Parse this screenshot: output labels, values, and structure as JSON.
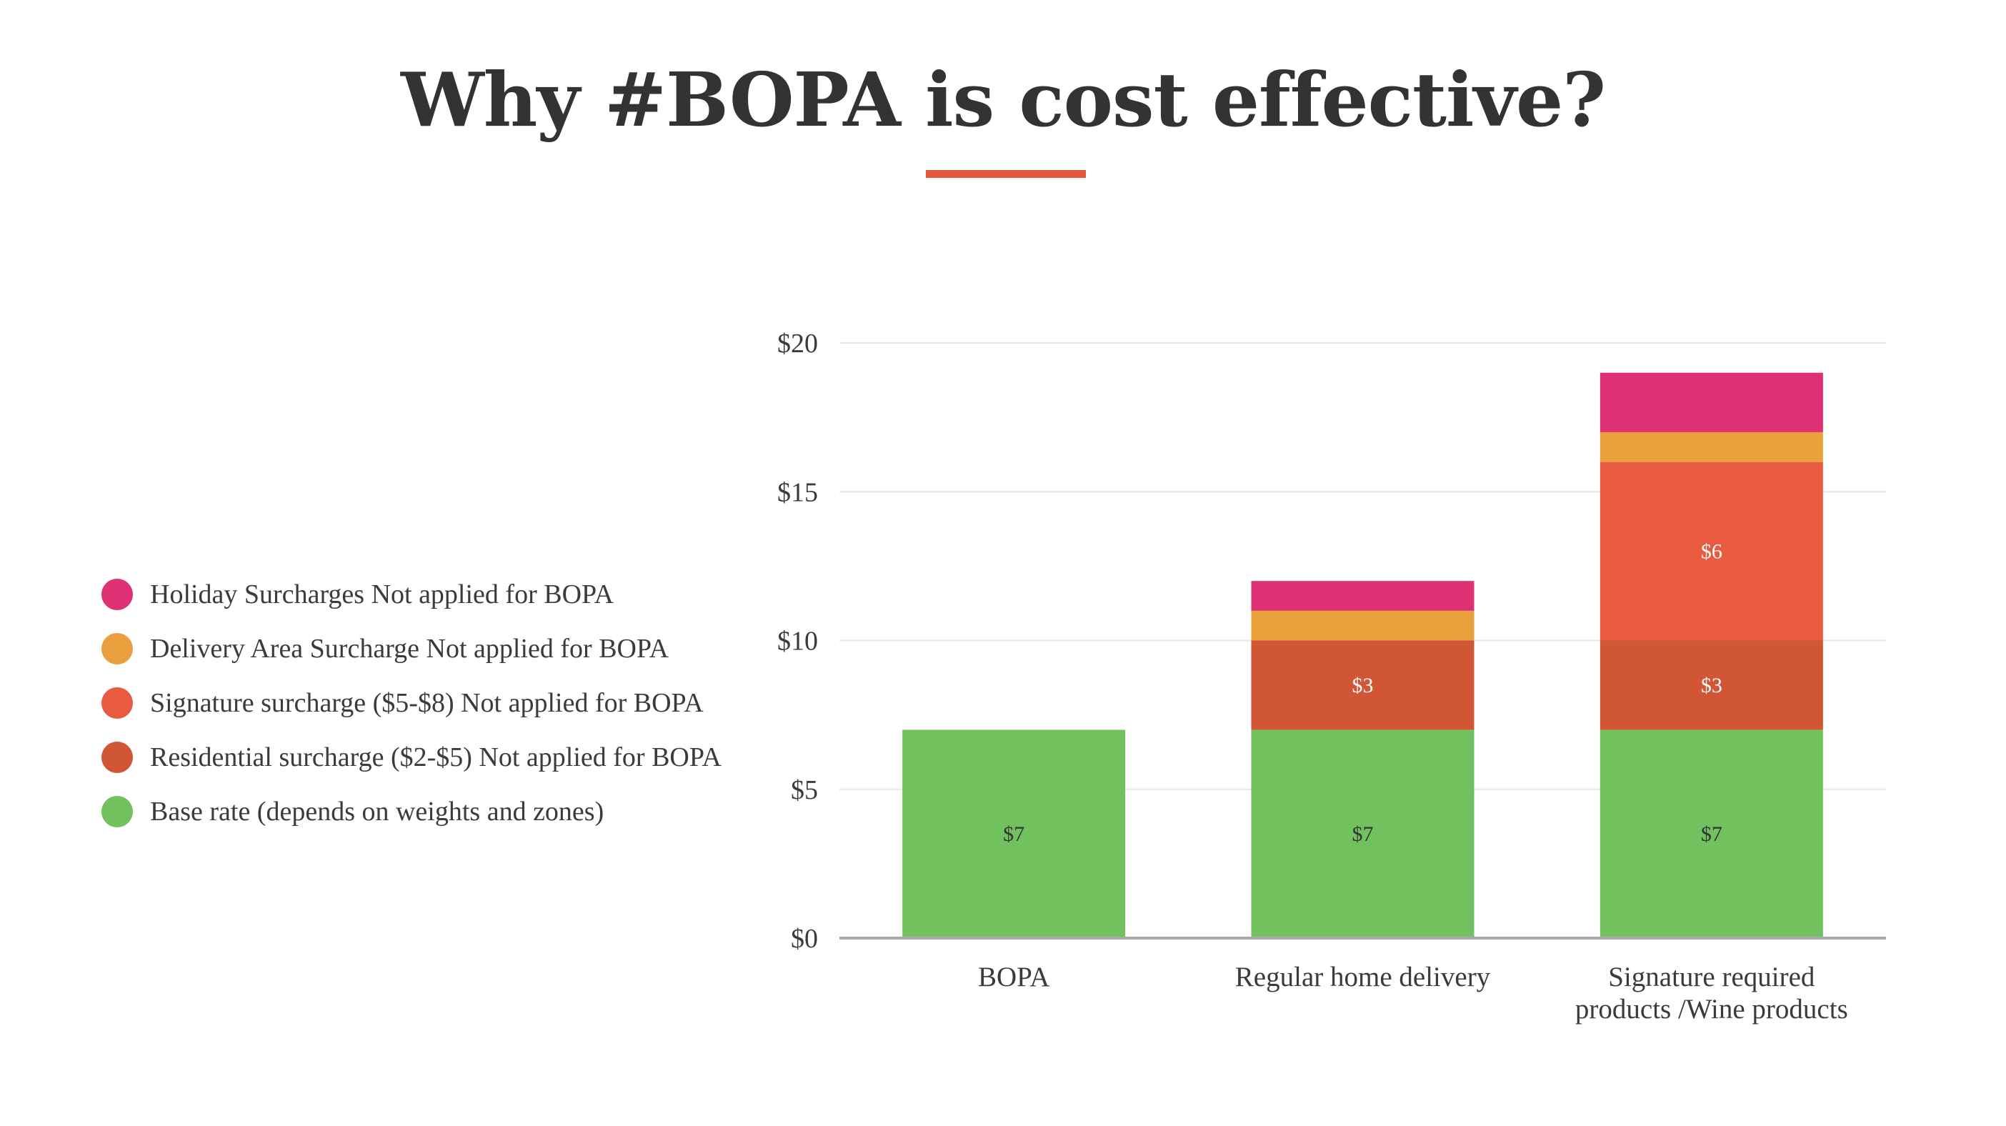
{
  "page": {
    "title": "Why #BOPA is cost effective?"
  },
  "chart_data": {
    "type": "bar",
    "stacked": true,
    "categories": [
      [
        "BOPA"
      ],
      [
        "Regular home delivery"
      ],
      [
        "Signature required",
        "products /Wine products"
      ]
    ],
    "series": [
      {
        "name": "Base rate (depends on weights and zones)",
        "color": "#72c15f",
        "values": [
          7,
          7,
          7
        ],
        "labels": [
          "$7",
          "$7",
          "$7"
        ],
        "label_color": "#333333"
      },
      {
        "name": "Residential surcharge ($2-$5) Not applied for BOPA",
        "color": "#d15636",
        "values": [
          0,
          3,
          3
        ],
        "labels": [
          "",
          "$3",
          "$3"
        ],
        "label_color": "#ffffff"
      },
      {
        "name": "Signature surcharge ($5-$8) Not applied for BOPA",
        "color": "#e85b40",
        "values": [
          0,
          0,
          6
        ],
        "labels": [
          "",
          "",
          "$6"
        ],
        "label_color": "#ffffff"
      },
      {
        "name": "Delivery Area Surcharge Not applied for BOPA",
        "color": "#e8a13c",
        "values": [
          0,
          1,
          1
        ],
        "labels": [
          "",
          "",
          ""
        ],
        "label_color": "#ffffff"
      },
      {
        "name": "Holiday Surcharges Not applied for BOPA",
        "color": "#dd3174",
        "values": [
          0,
          1,
          2
        ],
        "labels": [
          "",
          "",
          ""
        ],
        "label_color": "#ffffff"
      }
    ],
    "y_ticks": [
      0,
      5,
      10,
      15,
      20
    ],
    "y_tick_labels": [
      "$0",
      "$5",
      "$10",
      "$15",
      "$20"
    ],
    "ylim": [
      0,
      20
    ],
    "grid": true,
    "legend_position": "left",
    "gridline_color": "#e6e6e6",
    "axis_color": "#a8a8a8",
    "accent_color": "#e15841"
  }
}
